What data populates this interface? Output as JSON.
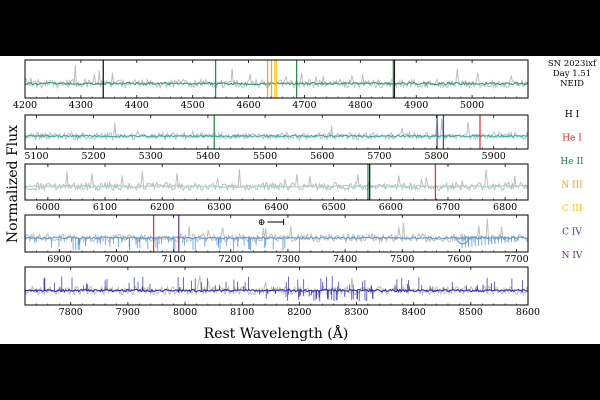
{
  "chart_data": {
    "type": "line",
    "title_lines": [
      "SN 2023ixf",
      "Day 1.51",
      "NEID"
    ],
    "xlabel": "Rest Wavelength (Å)",
    "ylabel": "Normalized Flux",
    "legend": [
      {
        "label": "H I",
        "color": "#000000"
      },
      {
        "label": "He I",
        "color": "#d62728"
      },
      {
        "label": "He II",
        "color": "#1a7f3c"
      },
      {
        "label": "N III",
        "color": "#f0a020"
      },
      {
        "label": "C III",
        "color": "#f5c518"
      },
      {
        "label": "C IV",
        "color": "#2a3f8f"
      },
      {
        "label": "N IV",
        "color": "#6a2c91"
      }
    ],
    "telluric_symbol": "⊕",
    "panels": [
      {
        "xlim": [
          4200,
          5100
        ],
        "ticks": [
          4200,
          4300,
          4400,
          4500,
          4600,
          4700,
          4800,
          4900,
          5000
        ],
        "color": "#2a9d7c",
        "lines": [
          {
            "x": 4340,
            "species": "H I"
          },
          {
            "x": 4541,
            "species": "He II"
          },
          {
            "x": 4634,
            "species": "N III"
          },
          {
            "x": 4641,
            "species": "N III"
          },
          {
            "x": 4647,
            "species": "C III"
          },
          {
            "x": 4650,
            "species": "C III"
          },
          {
            "x": 4686,
            "species": "He II"
          },
          {
            "x": 4861,
            "species": "H I"
          },
          {
            "x": 4859,
            "species": "He II"
          }
        ]
      },
      {
        "xlim": [
          5080,
          5960
        ],
        "ticks": [
          5100,
          5200,
          5300,
          5400,
          5500,
          5600,
          5700,
          5800,
          5900
        ],
        "color": "#2ab3a0",
        "lines": [
          {
            "x": 5411,
            "species": "He II"
          },
          {
            "x": 5801,
            "species": "C IV"
          },
          {
            "x": 5812,
            "species": "C IV"
          },
          {
            "x": 5876,
            "species": "He I"
          }
        ]
      },
      {
        "xlim": [
          5960,
          6840
        ],
        "ticks": [
          6000,
          6100,
          6200,
          6300,
          6400,
          6500,
          6600,
          6700,
          6800
        ],
        "color": "#9fd4c8",
        "lines": [
          {
            "x": 6560,
            "species": "He II"
          },
          {
            "x": 6563,
            "species": "H I"
          },
          {
            "x": 6678,
            "species": "He I"
          }
        ]
      },
      {
        "xlim": [
          6840,
          7720
        ],
        "ticks": [
          6900,
          7000,
          7100,
          7200,
          7300,
          7400,
          7500,
          7600,
          7700
        ],
        "color": "#5b9bd5",
        "lines": [
          {
            "x": 7065,
            "species": "He I"
          },
          {
            "x": 7109,
            "species": "N IV"
          }
        ]
      },
      {
        "xlim": [
          7720,
          8600
        ],
        "ticks": [
          7800,
          7900,
          8000,
          8100,
          8200,
          8300,
          8400,
          8500,
          8600
        ],
        "color": "#2b2bb0",
        "lines": []
      }
    ]
  }
}
